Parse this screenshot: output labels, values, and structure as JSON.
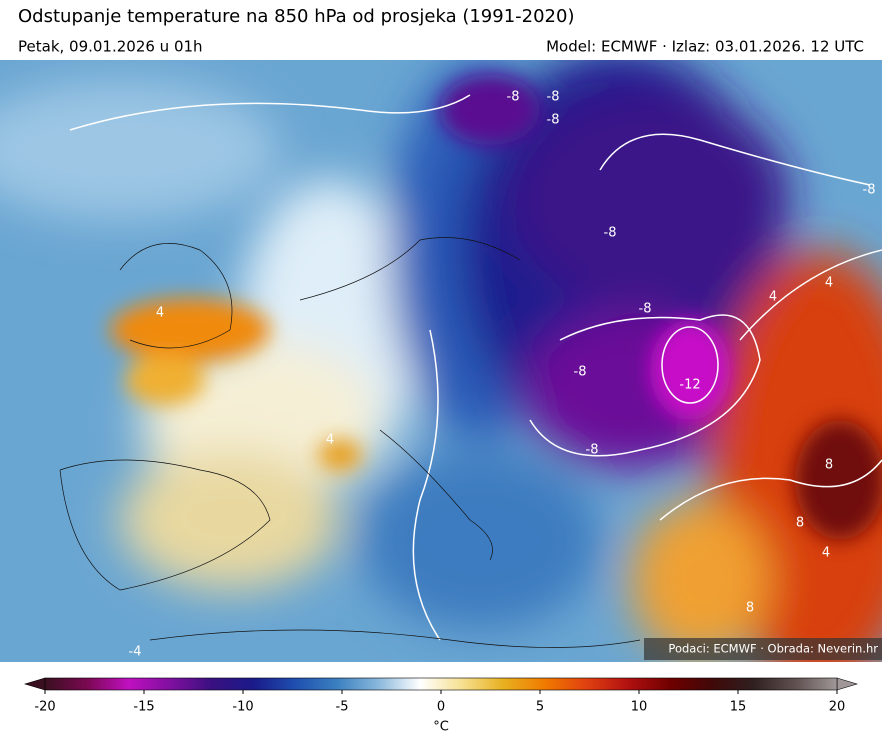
{
  "header": {
    "title": "Odstupanje temperature na 850 hPa od prosjeka (1991-2020)",
    "valid_time": "Petak, 09.01.2026 u 01h",
    "model_info": "Model: ECMWF · Izlaz: 03.01.2026. 12 UTC"
  },
  "map": {
    "credit": "Podaci: ECMWF · Obrada: Neverin.hr",
    "contour_labels": [
      -8,
      -8,
      -8,
      -8,
      -8,
      -8,
      4,
      4,
      4,
      -12,
      -8,
      -8,
      8,
      8,
      4,
      8,
      -4,
      4
    ]
  },
  "colorbar": {
    "range": [
      -20,
      20
    ],
    "ticks": [
      -20,
      -15,
      -10,
      -5,
      0,
      5,
      10,
      15,
      20
    ],
    "label": "°C",
    "colors": [
      "#3a1020",
      "#7a0850",
      "#c010c0",
      "#8010a0",
      "#3a1080",
      "#1a1a8a",
      "#1f4fb0",
      "#3a80c0",
      "#8ab8dc",
      "#ffffff",
      "#f6e090",
      "#e8b020",
      "#f07a00",
      "#e04010",
      "#b01010",
      "#700000",
      "#400808",
      "#302020",
      "#605050",
      "#a09898"
    ]
  }
}
